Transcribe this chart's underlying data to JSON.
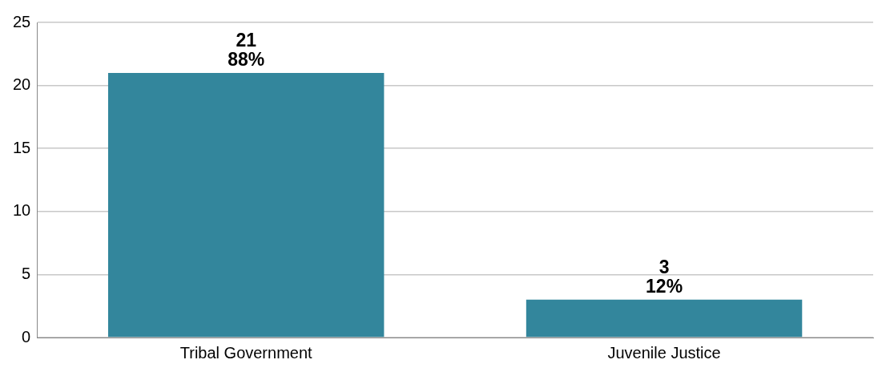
{
  "chart_data": {
    "type": "bar",
    "categories": [
      "Tribal Government",
      "Juvenile Justice"
    ],
    "values": [
      21,
      3
    ],
    "color": "#33869c",
    "value_labels": [
      "21\n88%",
      "3\n12%"
    ],
    "ylim": [
      0,
      25
    ],
    "yticks": [
      0,
      5,
      10,
      15,
      20,
      25
    ],
    "grid": "y",
    "legend": false
  }
}
